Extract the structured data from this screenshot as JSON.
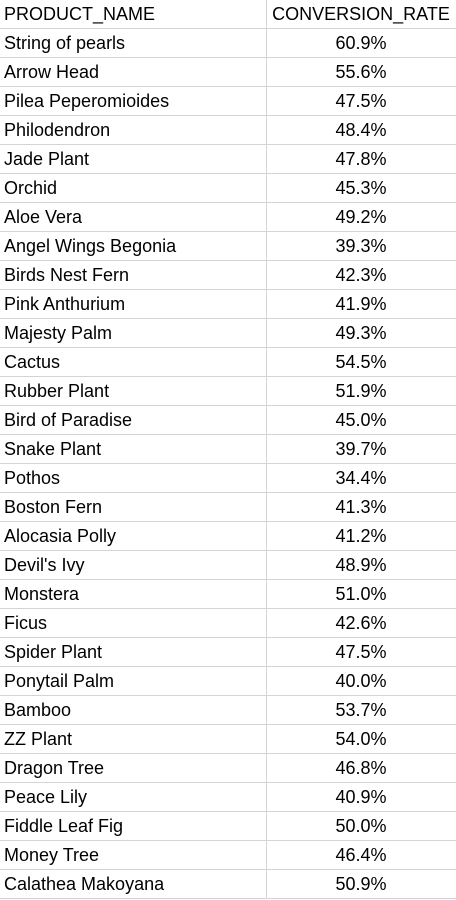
{
  "sheet": {
    "headers": {
      "product_name": "PRODUCT_NAME",
      "conversion_rate": "CONVERSION_RATE"
    },
    "rows": [
      {
        "name": "String of pearls",
        "rate": "60.9%"
      },
      {
        "name": "Arrow Head",
        "rate": "55.6%"
      },
      {
        "name": "Pilea Peperomioides",
        "rate": "47.5%"
      },
      {
        "name": "Philodendron",
        "rate": "48.4%"
      },
      {
        "name": "Jade Plant",
        "rate": "47.8%"
      },
      {
        "name": "Orchid",
        "rate": "45.3%"
      },
      {
        "name": "Aloe Vera",
        "rate": "49.2%"
      },
      {
        "name": "Angel Wings Begonia",
        "rate": "39.3%"
      },
      {
        "name": "Birds Nest Fern",
        "rate": "42.3%"
      },
      {
        "name": "Pink Anthurium",
        "rate": "41.9%"
      },
      {
        "name": "Majesty Palm",
        "rate": "49.3%"
      },
      {
        "name": "Cactus",
        "rate": "54.5%"
      },
      {
        "name": "Rubber Plant",
        "rate": "51.9%"
      },
      {
        "name": "Bird of Paradise",
        "rate": "45.0%"
      },
      {
        "name": "Snake Plant",
        "rate": "39.7%"
      },
      {
        "name": "Pothos",
        "rate": "34.4%"
      },
      {
        "name": "Boston Fern",
        "rate": "41.3%"
      },
      {
        "name": "Alocasia Polly",
        "rate": "41.2%"
      },
      {
        "name": "Devil's Ivy",
        "rate": "48.9%"
      },
      {
        "name": "Monstera",
        "rate": "51.0%"
      },
      {
        "name": "Ficus",
        "rate": "42.6%"
      },
      {
        "name": "Spider Plant",
        "rate": "47.5%"
      },
      {
        "name": "Ponytail Palm",
        "rate": "40.0%"
      },
      {
        "name": "Bamboo",
        "rate": "53.7%"
      },
      {
        "name": "ZZ Plant",
        "rate": "54.0%"
      },
      {
        "name": "Dragon Tree",
        "rate": "46.8%"
      },
      {
        "name": "Peace Lily",
        "rate": "40.9%"
      },
      {
        "name": "Fiddle Leaf Fig",
        "rate": "50.0%"
      },
      {
        "name": "Money Tree",
        "rate": "46.4%"
      },
      {
        "name": "Calathea Makoyana",
        "rate": "50.9%"
      }
    ]
  }
}
